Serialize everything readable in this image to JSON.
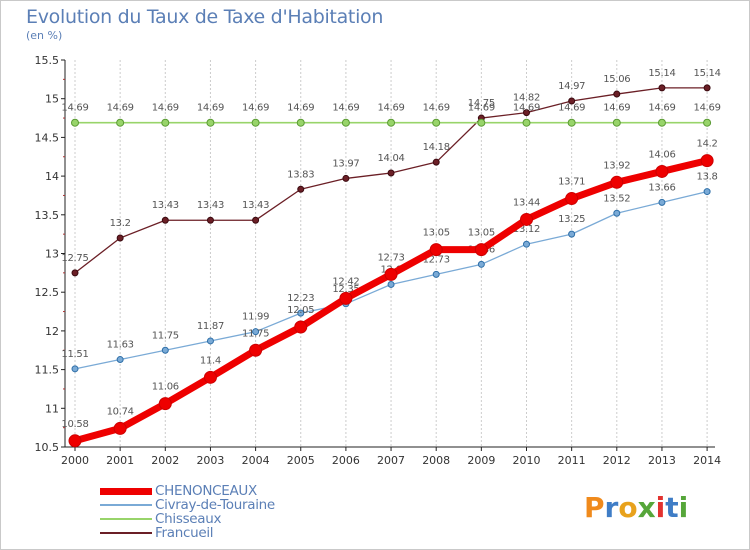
{
  "header": {
    "title": "Evolution du Taux de Taxe d'Habitation",
    "subtitle": "(en %)"
  },
  "logo": {
    "text": "Proxiti",
    "letters": [
      "P",
      "r",
      "o",
      "x",
      "i",
      "t",
      "i"
    ],
    "colors": [
      "#f08a1c",
      "#3f7dc6",
      "#e8a21c",
      "#56a63a",
      "#e2322f",
      "#3f7dc6",
      "#56a63a"
    ]
  },
  "chart_data": {
    "type": "line",
    "title": "Evolution du Taux de Taxe d'Habitation",
    "ylabel": "(en %)",
    "xlabel": "",
    "x": [
      "2000",
      "2001",
      "2002",
      "2003",
      "2004",
      "2005",
      "2006",
      "2007",
      "2008",
      "2009",
      "2010",
      "2011",
      "2012",
      "2013",
      "2014"
    ],
    "ylim": [
      10.5,
      15.5
    ],
    "yticks": [
      "10.5",
      "11",
      "11.5",
      "12",
      "12.5",
      "13",
      "13.5",
      "14",
      "14.5",
      "15",
      "15.5"
    ],
    "grid": "vertical",
    "legend_position": "bottom-left",
    "series": [
      {
        "name": "Francueil",
        "color": "#6b1f26",
        "values": [
          12.75,
          13.2,
          13.43,
          13.43,
          13.43,
          13.83,
          13.97,
          14.04,
          14.18,
          14.75,
          14.82,
          14.97,
          15.06,
          15.14,
          15.14
        ],
        "labels": [
          "12.75",
          "13.2",
          "13.43",
          "13.43",
          "13.43",
          "13.83",
          "13.97",
          "14.04",
          "14.18",
          "14.75",
          "14.82",
          "14.97",
          "15.06",
          "15.14",
          "15.14"
        ]
      },
      {
        "name": "Chisseaux",
        "color": "#98d46a",
        "values": [
          14.69,
          14.69,
          14.69,
          14.69,
          14.69,
          14.69,
          14.69,
          14.69,
          14.69,
          14.69,
          14.69,
          14.69,
          14.69,
          14.69,
          14.69
        ],
        "labels": [
          "14.69",
          "14.69",
          "14.69",
          "14.69",
          "14.69",
          "14.69",
          "14.69",
          "14.69",
          "14.69",
          "14.69",
          "14.69",
          "14.69",
          "14.69",
          "14.69",
          "14.69"
        ]
      },
      {
        "name": "Civray-de-Touraine",
        "color": "#7aaad6",
        "values": [
          11.51,
          11.63,
          11.75,
          11.87,
          11.99,
          12.23,
          12.35,
          12.6,
          12.73,
          12.86,
          13.12,
          13.25,
          13.52,
          13.66,
          13.8
        ],
        "labels": [
          "11.51",
          "11.63",
          "11.75",
          "11.87",
          "11.99",
          "12.23",
          "12.35",
          "12.6",
          "12.73",
          "12.86",
          "13.12",
          "13.25",
          "13.52",
          "13.66",
          "13.8"
        ]
      },
      {
        "name": "CHENONCEAUX",
        "color": "#ee0000",
        "values": [
          10.58,
          10.74,
          11.06,
          11.4,
          11.75,
          12.05,
          12.42,
          12.73,
          13.05,
          13.05,
          13.44,
          13.71,
          13.92,
          14.06,
          14.2
        ],
        "labels": [
          "10.58",
          "10.74",
          "11.06",
          "11.4",
          "11.75",
          "12.05",
          "12.42",
          "12.73",
          "13.05",
          "13.05",
          "13.44",
          "13.71",
          "13.92",
          "14.06",
          "14.2"
        ]
      }
    ]
  }
}
